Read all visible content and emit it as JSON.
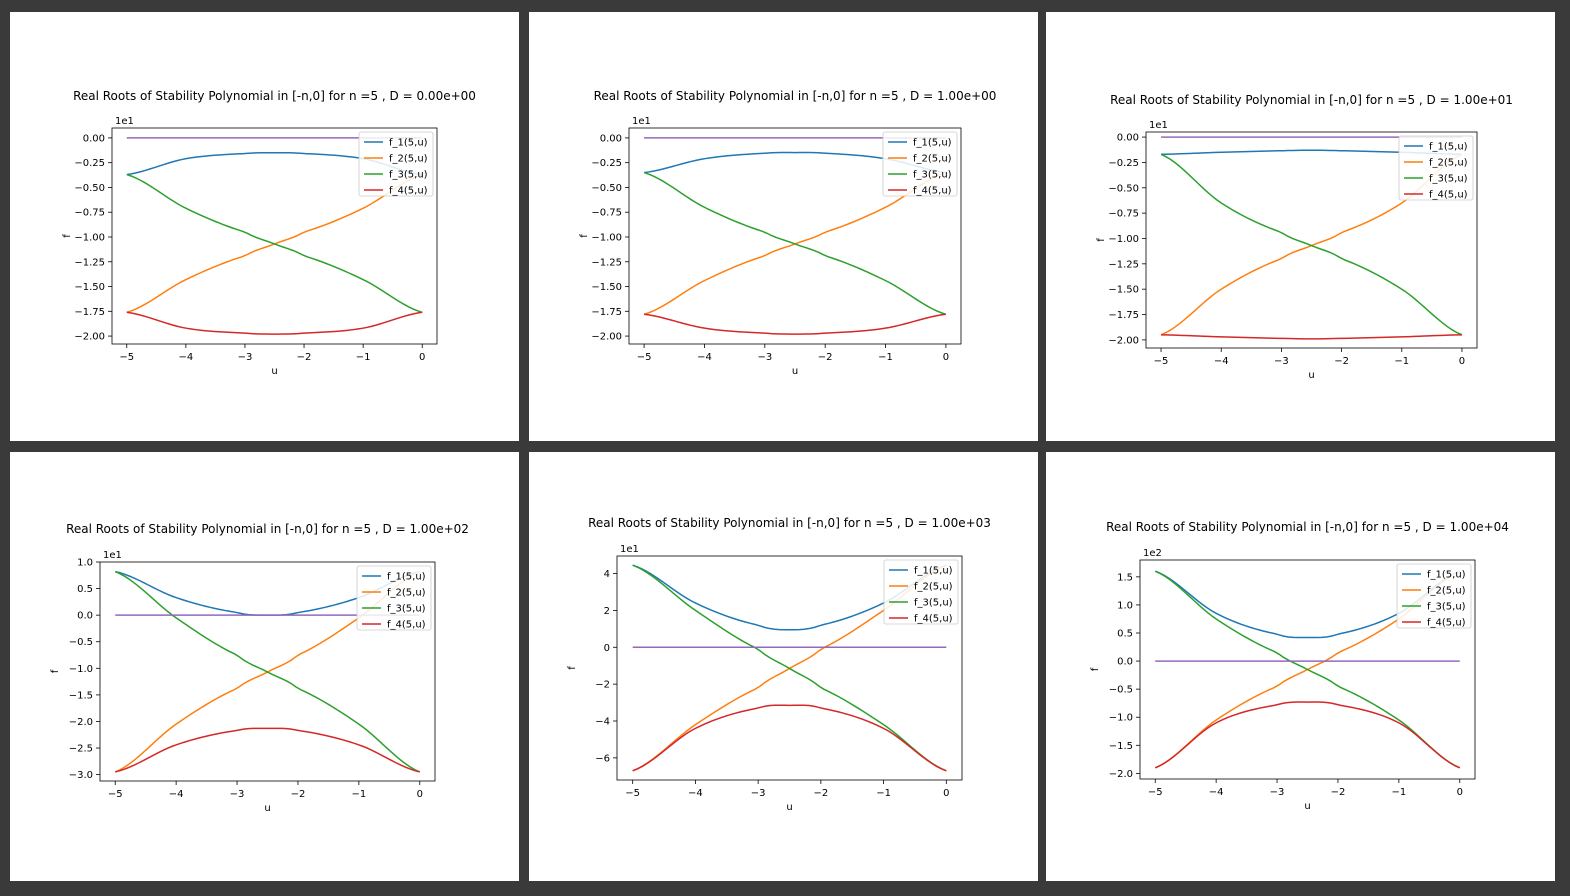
{
  "legend_labels": [
    "f_1(5,u)",
    "f_2(5,u)",
    "f_3(5,u)",
    "f_4(5,u)"
  ],
  "series_colors": [
    "#1f77b4",
    "#ff7f0e",
    "#2ca02c",
    "#d62728",
    "#9467bd"
  ],
  "chart_data": [
    {
      "type": "line",
      "title": "Real Roots of Stability Polynomial in [-n,0] for n =5 , D = 0.00e+00",
      "xlabel": "u",
      "ylabel": "f",
      "offset_text": "1e1",
      "xlim": [
        -5.25,
        0.25
      ],
      "ylim": [
        -2.08,
        0.1
      ],
      "xticks": [
        -5,
        -4,
        -3,
        -2,
        -1,
        0
      ],
      "xtick_labels": [
        "−5",
        "−4",
        "−3",
        "−2",
        "−1",
        "0"
      ],
      "yticks": [
        0,
        -0.25,
        -0.5,
        -0.75,
        -1.0,
        -1.25,
        -1.5,
        -1.75,
        -2.0
      ],
      "ytick_labels": [
        "0.00",
        "−0.25",
        "−0.50",
        "−0.75",
        "−1.00",
        "−1.25",
        "−1.50",
        "−1.75",
        "−2.00"
      ],
      "legend_position": "top-right",
      "series": [
        {
          "name": "f_1(5,u)",
          "x": [
            -5,
            -4,
            -3,
            -2.5,
            -2,
            -1,
            0
          ],
          "y": [
            -0.37,
            -0.21,
            -0.158,
            -0.15,
            -0.158,
            -0.21,
            -0.37
          ]
        },
        {
          "name": "f_2(5,u)",
          "x": [
            -5,
            -4,
            -3,
            -2.5,
            -2,
            -1,
            0
          ],
          "y": [
            -1.76,
            -1.43,
            -1.19,
            -1.07,
            -0.95,
            -0.71,
            -0.37
          ]
        },
        {
          "name": "f_3(5,u)",
          "x": [
            -5,
            -4,
            -3,
            -2.5,
            -2,
            -1,
            0
          ],
          "y": [
            -0.37,
            -0.71,
            -0.95,
            -1.07,
            -1.19,
            -1.43,
            -1.76
          ]
        },
        {
          "name": "f_4(5,u)",
          "x": [
            -5,
            -4,
            -3,
            -2.5,
            -2,
            -1,
            0
          ],
          "y": [
            -1.76,
            -1.92,
            -1.97,
            -1.98,
            -1.97,
            -1.92,
            -1.76
          ]
        },
        {
          "name": "",
          "x": [
            -5,
            0
          ],
          "y": [
            0,
            0
          ]
        }
      ]
    },
    {
      "type": "line",
      "title": "Real Roots of Stability Polynomial in [-n,0] for n =5 , D = 1.00e+00",
      "xlabel": "u",
      "ylabel": "f",
      "offset_text": "1e1",
      "xlim": [
        -5.25,
        0.25
      ],
      "ylim": [
        -2.08,
        0.1
      ],
      "xticks": [
        -5,
        -4,
        -3,
        -2,
        -1,
        0
      ],
      "xtick_labels": [
        "−5",
        "−4",
        "−3",
        "−2",
        "−1",
        "0"
      ],
      "yticks": [
        0,
        -0.25,
        -0.5,
        -0.75,
        -1.0,
        -1.25,
        -1.5,
        -1.75,
        -2.0
      ],
      "ytick_labels": [
        "0.00",
        "−0.25",
        "−0.50",
        "−0.75",
        "−1.00",
        "−1.25",
        "−1.50",
        "−1.75",
        "−2.00"
      ],
      "legend_position": "top-right",
      "series": [
        {
          "name": "f_1(5,u)",
          "x": [
            -5,
            -4,
            -3,
            -2.5,
            -2,
            -1,
            0
          ],
          "y": [
            -0.35,
            -0.21,
            -0.155,
            -0.148,
            -0.155,
            -0.21,
            -0.35
          ]
        },
        {
          "name": "f_2(5,u)",
          "x": [
            -5,
            -4,
            -3,
            -2.5,
            -2,
            -1,
            0
          ],
          "y": [
            -1.78,
            -1.44,
            -1.19,
            -1.07,
            -0.95,
            -0.7,
            -0.35
          ]
        },
        {
          "name": "f_3(5,u)",
          "x": [
            -5,
            -4,
            -3,
            -2.5,
            -2,
            -1,
            0
          ],
          "y": [
            -0.35,
            -0.7,
            -0.95,
            -1.07,
            -1.19,
            -1.44,
            -1.78
          ]
        },
        {
          "name": "f_4(5,u)",
          "x": [
            -5,
            -4,
            -3,
            -2.5,
            -2,
            -1,
            0
          ],
          "y": [
            -1.78,
            -1.92,
            -1.97,
            -1.98,
            -1.97,
            -1.92,
            -1.78
          ]
        },
        {
          "name": "",
          "x": [
            -5,
            0
          ],
          "y": [
            0,
            0
          ]
        }
      ]
    },
    {
      "type": "line",
      "title": "Real Roots of Stability Polynomial in [-n,0] for n =5 , D = 1.00e+01",
      "xlabel": "u",
      "ylabel": "f",
      "offset_text": "1e1",
      "xlim": [
        -5.25,
        0.25
      ],
      "ylim": [
        -2.08,
        0.05
      ],
      "xticks": [
        -5,
        -4,
        -3,
        -2,
        -1,
        0
      ],
      "xtick_labels": [
        "−5",
        "−4",
        "−3",
        "−2",
        "−1",
        "0"
      ],
      "yticks": [
        0,
        -0.25,
        -0.5,
        -0.75,
        -1.0,
        -1.25,
        -1.5,
        -1.75,
        -2.0
      ],
      "ytick_labels": [
        "0.00",
        "−0.25",
        "−0.50",
        "−0.75",
        "−1.00",
        "−1.25",
        "−1.50",
        "−1.75",
        "−2.00"
      ],
      "legend_position": "top-right",
      "series": [
        {
          "name": "f_1(5,u)",
          "x": [
            -5,
            -4,
            -3,
            -2.5,
            -2,
            -1,
            0
          ],
          "y": [
            -0.17,
            -0.15,
            -0.135,
            -0.13,
            -0.135,
            -0.15,
            -0.17
          ]
        },
        {
          "name": "f_2(5,u)",
          "x": [
            -5,
            -4,
            -3,
            -2.5,
            -2,
            -1,
            0
          ],
          "y": [
            -1.95,
            -1.5,
            -1.2,
            -1.07,
            -0.94,
            -0.65,
            -0.17
          ]
        },
        {
          "name": "f_3(5,u)",
          "x": [
            -5,
            -4,
            -3,
            -2.5,
            -2,
            -1,
            0
          ],
          "y": [
            -0.17,
            -0.65,
            -0.94,
            -1.07,
            -1.2,
            -1.5,
            -1.95
          ]
        },
        {
          "name": "f_4(5,u)",
          "x": [
            -5,
            -4,
            -3,
            -2.5,
            -2,
            -1,
            0
          ],
          "y": [
            -1.95,
            -1.97,
            -1.985,
            -1.99,
            -1.985,
            -1.97,
            -1.95
          ]
        },
        {
          "name": "",
          "x": [
            -5,
            0
          ],
          "y": [
            0,
            0
          ]
        }
      ]
    },
    {
      "type": "line",
      "title": "Real Roots of Stability Polynomial in [-n,0] for n =5 , D = 1.00e+02",
      "xlabel": "u",
      "ylabel": "f",
      "offset_text": "1e1",
      "xlim": [
        -5.25,
        0.25
      ],
      "ylim": [
        -3.12,
        1.0
      ],
      "xticks": [
        -5,
        -4,
        -3,
        -2,
        -1,
        0
      ],
      "xtick_labels": [
        "−5",
        "−4",
        "−3",
        "−2",
        "−1",
        "0"
      ],
      "yticks": [
        1.0,
        0.5,
        0,
        -0.5,
        -1.0,
        -1.5,
        -2.0,
        -2.5,
        -3.0
      ],
      "ytick_labels": [
        "1.0",
        "0.5",
        "0.0",
        "−0.5",
        "−1.0",
        "−1.5",
        "−2.0",
        "−2.5",
        "−3.0"
      ],
      "legend_position": "top-right",
      "series": [
        {
          "name": "f_1(5,u)",
          "x": [
            -5,
            -4,
            -3,
            -2.5,
            -2,
            -1,
            0
          ],
          "y": [
            0.82,
            0.33,
            0.05,
            0.0,
            0.05,
            0.33,
            0.82
          ]
        },
        {
          "name": "f_2(5,u)",
          "x": [
            -5,
            -4,
            -3,
            -2.5,
            -2,
            -1,
            0
          ],
          "y": [
            -2.95,
            -2.05,
            -1.38,
            -1.07,
            -0.75,
            -0.05,
            0.82
          ]
        },
        {
          "name": "f_3(5,u)",
          "x": [
            -5,
            -4,
            -3,
            -2.5,
            -2,
            -1,
            0
          ],
          "y": [
            0.82,
            -0.05,
            -0.75,
            -1.07,
            -1.38,
            -2.05,
            -2.95
          ]
        },
        {
          "name": "f_4(5,u)",
          "x": [
            -5,
            -4,
            -3,
            -2.5,
            -2,
            -1,
            0
          ],
          "y": [
            -2.95,
            -2.44,
            -2.17,
            -2.13,
            -2.17,
            -2.44,
            -2.95
          ]
        },
        {
          "name": "",
          "x": [
            -5,
            0
          ],
          "y": [
            0,
            0
          ]
        }
      ]
    },
    {
      "type": "line",
      "title": "Real Roots of Stability Polynomial in [-n,0] for n =5 , D = 1.00e+03",
      "xlabel": "u",
      "ylabel": "f",
      "offset_text": "1e1",
      "xlim": [
        -5.25,
        0.25
      ],
      "ylim": [
        -7.2,
        4.95
      ],
      "xticks": [
        -5,
        -4,
        -3,
        -2,
        -1,
        0
      ],
      "xtick_labels": [
        "−5",
        "−4",
        "−3",
        "−2",
        "−1",
        "0"
      ],
      "yticks": [
        4,
        2,
        0,
        -2,
        -4,
        -6
      ],
      "ytick_labels": [
        "4",
        "2",
        "0",
        "−2",
        "−4",
        "−6"
      ],
      "legend_position": "top-right",
      "series": [
        {
          "name": "f_1(5,u)",
          "x": [
            -5,
            -4,
            -3,
            -2.5,
            -2,
            -1,
            0
          ],
          "y": [
            4.45,
            2.4,
            1.2,
            0.95,
            1.2,
            2.4,
            4.45
          ]
        },
        {
          "name": "f_2(5,u)",
          "x": [
            -5,
            -4,
            -3,
            -2.5,
            -2,
            -1,
            0
          ],
          "y": [
            -6.7,
            -4.2,
            -2.2,
            -1.15,
            -0.1,
            2.0,
            4.45
          ]
        },
        {
          "name": "f_3(5,u)",
          "x": [
            -5,
            -4,
            -3,
            -2.5,
            -2,
            -1,
            0
          ],
          "y": [
            4.45,
            2.0,
            -0.1,
            -1.15,
            -2.2,
            -4.2,
            -6.7
          ]
        },
        {
          "name": "f_4(5,u)",
          "x": [
            -5,
            -4,
            -3,
            -2.5,
            -2,
            -1,
            0
          ],
          "y": [
            -6.7,
            -4.4,
            -3.3,
            -3.15,
            -3.3,
            -4.4,
            -6.7
          ]
        },
        {
          "name": "",
          "x": [
            -5,
            0
          ],
          "y": [
            0,
            0
          ]
        }
      ]
    },
    {
      "type": "line",
      "title": "Real Roots of Stability Polynomial in [-n,0] for n =5 , D = 1.00e+04",
      "xlabel": "u",
      "ylabel": "f",
      "offset_text": "1e2",
      "xlim": [
        -5.25,
        0.25
      ],
      "ylim": [
        -2.1,
        1.8
      ],
      "xticks": [
        -5,
        -4,
        -3,
        -2,
        -1,
        0
      ],
      "xtick_labels": [
        "−5",
        "−4",
        "−3",
        "−2",
        "−1",
        "0"
      ],
      "yticks": [
        1.5,
        1.0,
        0.5,
        0,
        -0.5,
        -1.0,
        -1.5,
        -2.0
      ],
      "ytick_labels": [
        "1.5",
        "1.0",
        "0.5",
        "0.0",
        "−0.5",
        "−1.0",
        "−1.5",
        "−2.0"
      ],
      "legend_position": "top-right",
      "series": [
        {
          "name": "f_1(5,u)",
          "x": [
            -5,
            -4,
            -3,
            -2.5,
            -2,
            -1,
            0
          ],
          "y": [
            1.6,
            0.85,
            0.48,
            0.42,
            0.48,
            0.85,
            1.6
          ]
        },
        {
          "name": "f_2(5,u)",
          "x": [
            -5,
            -4,
            -3,
            -2.5,
            -2,
            -1,
            0
          ],
          "y": [
            -1.9,
            -1.05,
            -0.45,
            -0.15,
            0.15,
            0.75,
            1.6
          ]
        },
        {
          "name": "f_3(5,u)",
          "x": [
            -5,
            -4,
            -3,
            -2.5,
            -2,
            -1,
            0
          ],
          "y": [
            1.6,
            0.75,
            0.15,
            -0.15,
            -0.45,
            -1.05,
            -1.9
          ]
        },
        {
          "name": "f_4(5,u)",
          "x": [
            -5,
            -4,
            -3,
            -2.5,
            -2,
            -1,
            0
          ],
          "y": [
            -1.9,
            -1.1,
            -0.78,
            -0.73,
            -0.78,
            -1.1,
            -1.9
          ]
        },
        {
          "name": "",
          "x": [
            -5,
            0
          ],
          "y": [
            0,
            0
          ]
        }
      ]
    }
  ]
}
